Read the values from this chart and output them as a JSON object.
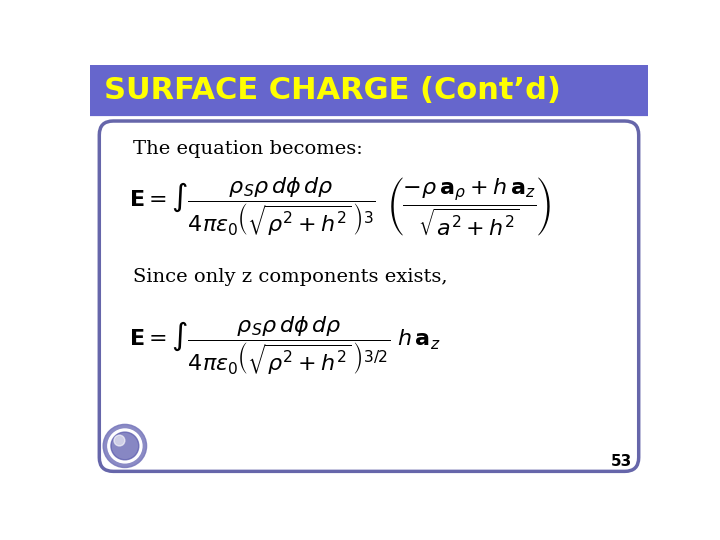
{
  "title": "SURFACE CHARGE (Cont’d)",
  "title_bg_color": "#6666cc",
  "title_text_color": "#ffff00",
  "slide_bg_color": "#ffffff",
  "border_color": "#6666aa",
  "text1": "The equation becomes:",
  "text2": "Since only z components exists,",
  "page_number": "53",
  "font_size_title": 22,
  "font_size_text": 14
}
